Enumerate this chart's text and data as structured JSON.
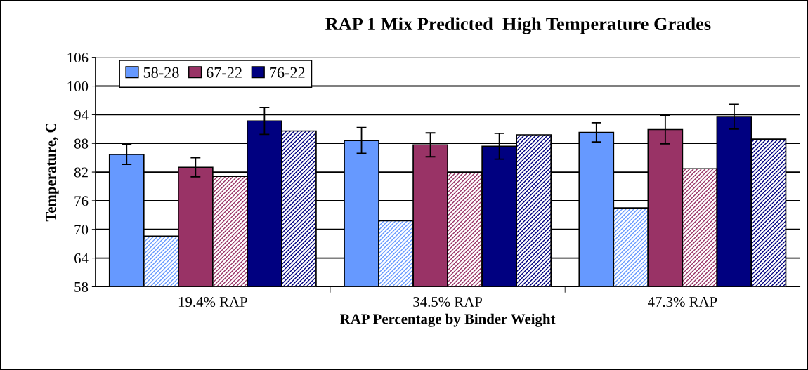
{
  "chart_data": {
    "type": "bar",
    "title": "RAP 1 Mix Predicted  High Temperature Grades",
    "xlabel": "RAP Percentage by Binder Weight",
    "ylabel": "Temperature, C",
    "categories": [
      "19.4% RAP",
      "34.5% RAP",
      "47.3% RAP"
    ],
    "series": [
      {
        "name": "58-28",
        "color": "#6699ff",
        "values": [
          85.7,
          88.6,
          90.3
        ],
        "errors": [
          2.1,
          2.7,
          2.0
        ]
      },
      {
        "color": "#6699ff",
        "values": [
          68.6,
          71.8,
          74.5
        ]
      },
      {
        "name": "67-22",
        "color": "#993366",
        "values": [
          83.0,
          87.7,
          90.9
        ],
        "errors": [
          2.0,
          2.5,
          3.0
        ]
      },
      {
        "color": "#993366",
        "values": [
          81.1,
          81.9,
          82.7
        ]
      },
      {
        "name": "76-22",
        "color": "#000080",
        "values": [
          92.7,
          87.4,
          93.6
        ],
        "errors": [
          2.8,
          2.7,
          2.6
        ]
      },
      {
        "color": "#000080",
        "values": [
          90.6,
          89.8,
          88.9
        ]
      }
    ],
    "ylim": [
      58,
      106
    ],
    "yticks": [
      58,
      64,
      70,
      76,
      82,
      88,
      94,
      100,
      106
    ],
    "grid": "y",
    "legend": "top left"
  }
}
